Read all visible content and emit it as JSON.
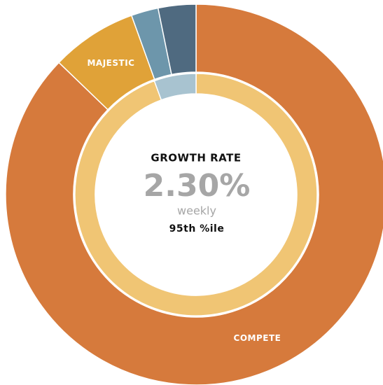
{
  "chart_data": {
    "type": "donut",
    "rings": [
      {
        "categories": [
          "COMPETE",
          "MAJESTIC",
          null,
          null
        ],
        "values": [
          87.2,
          7.3,
          2.3,
          3.2
        ],
        "colors": [
          "#d67a3c",
          "#e0a238",
          "#6d96ab",
          "#4f6a80"
        ]
      },
      {
        "categories": [
          null,
          null
        ],
        "values": [
          94.4,
          5.6
        ],
        "colors": [
          "#f0c574",
          "#a8c3d0"
        ]
      }
    ],
    "title": "GROWTH RATE",
    "center_value": "2.30%",
    "center_caption": "weekly",
    "center_note": "95th %ile"
  }
}
